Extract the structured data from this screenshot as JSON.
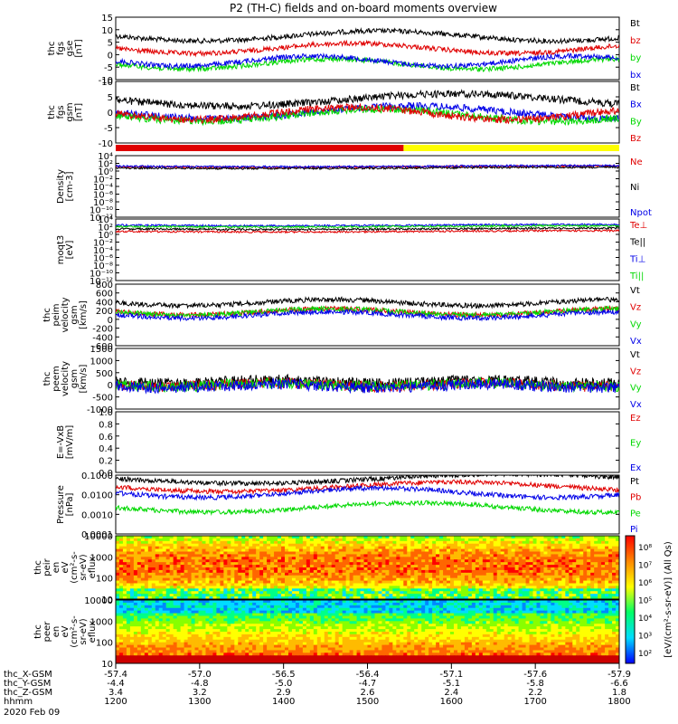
{
  "title": "P2 (TH-C) fields and on-board moments overview",
  "colors": {
    "black": "#000000",
    "red": "#e00000",
    "green": "#00d800",
    "blue": "#0000e8",
    "yellow": "#ffff00",
    "panel_bg": "#ffffff"
  },
  "chart_data": [
    {
      "type": "line",
      "ylabel_lines": [
        "thc",
        "fgs",
        "gse",
        "[nT]"
      ],
      "ylim": [
        -10,
        15
      ],
      "yticks": [
        "15",
        "10",
        "5",
        "0",
        "-5",
        "-10"
      ],
      "legend": [
        {
          "name": "Bt",
          "color": "#000000"
        },
        {
          "name": "bz",
          "color": "#e00000"
        },
        {
          "name": "by",
          "color": "#00d800"
        },
        {
          "name": "bx",
          "color": "#0000e8"
        }
      ]
    },
    {
      "type": "line",
      "ylabel_lines": [
        "thc",
        "fgs",
        "gsm",
        "[nT]"
      ],
      "ylim": [
        -14,
        10
      ],
      "yticks": [
        "10",
        "5",
        "0",
        "-5",
        "-10"
      ],
      "legend": [
        {
          "name": "Bt",
          "color": "#000000"
        },
        {
          "name": "Bx",
          "color": "#0000e8"
        },
        {
          "name": "By",
          "color": "#00d800"
        },
        {
          "name": "Bz",
          "color": "#e00000"
        }
      ]
    },
    {
      "type": "bar",
      "name": "mode-bar",
      "segments": [
        {
          "color": "#e00000",
          "from": 1200,
          "to": 1543
        },
        {
          "color": "#ffff00",
          "from": 1543,
          "to": 1800
        }
      ]
    },
    {
      "type": "line",
      "ylabel_lines": [
        "Density",
        "[cm-3]"
      ],
      "yscale": "log",
      "yticks": [
        "10⁴",
        "10²",
        "10⁰",
        "10⁻²",
        "10⁻⁴",
        "10⁻⁶",
        "10⁻⁸",
        "10⁻¹⁰",
        "10⁻¹²"
      ],
      "legend": [
        {
          "name": "Ne",
          "color": "#e00000"
        },
        {
          "name": "Ni",
          "color": "#000000"
        },
        {
          "name": "Npot",
          "color": "#0000e8"
        }
      ]
    },
    {
      "type": "line",
      "ylabel_lines": [
        "moqt3",
        "[eV]"
      ],
      "yscale": "log",
      "yticks": [
        "10⁴",
        "10²",
        "10⁰",
        "10⁻²",
        "10⁻⁴",
        "10⁻⁶",
        "10⁻⁸",
        "10⁻¹⁰",
        "10⁻¹²"
      ],
      "legend": [
        {
          "name": "Te⊥",
          "color": "#e00000"
        },
        {
          "name": "Te||",
          "color": "#000000"
        },
        {
          "name": "Ti⊥",
          "color": "#0000e8"
        },
        {
          "name": "Ti||",
          "color": "#00d800"
        }
      ]
    },
    {
      "type": "line",
      "ylabel_lines": [
        "thc",
        "peim",
        "velocity",
        "gsm",
        "[km/s]"
      ],
      "ylim": [
        -600,
        800
      ],
      "yticks": [
        "800",
        "600",
        "400",
        "200",
        "0",
        "-200",
        "-400",
        "-600"
      ],
      "legend": [
        {
          "name": "Vt",
          "color": "#000000"
        },
        {
          "name": "Vz",
          "color": "#e00000"
        },
        {
          "name": "Vy",
          "color": "#00d800"
        },
        {
          "name": "Vx",
          "color": "#0000e8"
        }
      ]
    },
    {
      "type": "line",
      "ylabel_lines": [
        "thc",
        "peem",
        "velocity",
        "gsm",
        "[km/s]"
      ],
      "ylim": [
        -1000,
        1500
      ],
      "yticks": [
        "1500",
        "1000",
        "500",
        "0",
        "-500",
        "-1000"
      ],
      "legend": [
        {
          "name": "Vt",
          "color": "#000000"
        },
        {
          "name": "Vz",
          "color": "#e00000"
        },
        {
          "name": "Vy",
          "color": "#00d800"
        },
        {
          "name": "Vx",
          "color": "#0000e8"
        }
      ]
    },
    {
      "type": "line",
      "ylabel_lines": [
        "E=-VxB",
        "[mV/m]"
      ],
      "ylim": [
        0,
        1
      ],
      "yticks": [
        "1.0",
        "0.8",
        "0.6",
        "0.4",
        "0.2",
        "0.0"
      ],
      "legend": [
        {
          "name": "Ez",
          "color": "#e00000"
        },
        {
          "name": "Ey",
          "color": "#00d800"
        },
        {
          "name": "Ex",
          "color": "#0000e8"
        }
      ]
    },
    {
      "type": "line",
      "ylabel_lines": [
        "Pressure",
        "[nPa]"
      ],
      "yscale": "log",
      "ylim": [
        0.0001,
        0.1
      ],
      "yticks": [
        "0.1000",
        "0.0100",
        "0.0010",
        "0.0001"
      ],
      "legend": [
        {
          "name": "Pt",
          "color": "#000000"
        },
        {
          "name": "Pb",
          "color": "#e00000"
        },
        {
          "name": "Pe",
          "color": "#00d800"
        },
        {
          "name": "Pi",
          "color": "#0000e8"
        }
      ]
    },
    {
      "type": "heatmap",
      "ylabel_lines": [
        "thc",
        "peir",
        "en",
        "eV",
        "(cm²-s-",
        "sr-eV)",
        "eflux"
      ],
      "yscale": "log",
      "yticks": [
        "10000",
        "1000",
        "100",
        "10"
      ]
    },
    {
      "type": "heatmap",
      "ylabel_lines": [
        "thc",
        "peer",
        "en",
        "eV",
        "(cm²-s-",
        "sr-eV)",
        "eflux"
      ],
      "yscale": "log",
      "yticks": [
        "10000",
        "1000",
        "100",
        "10"
      ]
    }
  ],
  "colorbar": {
    "label": "[eV/(cm²-s-sr-eV)] (All Qs)",
    "ticks": [
      "10⁸",
      "10⁷",
      "10⁶",
      "10⁵",
      "10⁴",
      "10³",
      "10²"
    ]
  },
  "x_axis": {
    "rows": [
      {
        "label": "thc_X-GSM",
        "values": [
          "-57.4",
          "-57.0",
          "-56.5",
          "-56.4",
          "-57.1",
          "-57.6",
          "-57.9"
        ]
      },
      {
        "label": "thc_Y-GSM",
        "values": [
          "-4.4",
          "-4.8",
          "-5.0",
          "-4.7",
          "-5.1",
          "-5.8",
          "-6.6"
        ]
      },
      {
        "label": "thc_Z-GSM",
        "values": [
          "3.4",
          "3.2",
          "2.9",
          "2.6",
          "2.4",
          "2.2",
          "1.8"
        ]
      },
      {
        "label": "hhmm",
        "values": [
          "1200",
          "1300",
          "1400",
          "1500",
          "1600",
          "1700",
          "1800"
        ]
      }
    ],
    "date": "2020 Feb 09"
  }
}
